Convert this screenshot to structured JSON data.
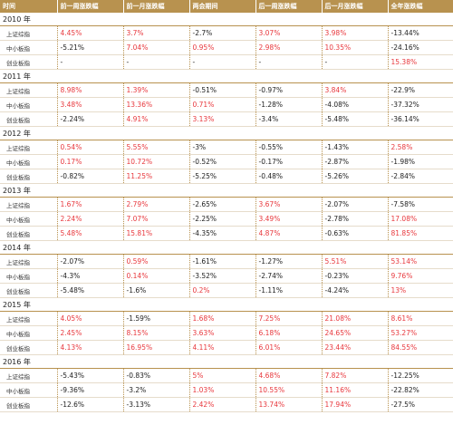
{
  "colors": {
    "header_bg": "#b8924f",
    "positive": "#e8383d",
    "negative": "#222222"
  },
  "header": [
    "时间",
    "前一周涨跌幅",
    "前一月涨跌幅",
    "两会期间",
    "后一周涨跌幅",
    "后一月涨跌幅",
    "全年涨跌幅"
  ],
  "years": [
    {
      "year": "2010 年",
      "rows": [
        {
          "label": "上证综指",
          "cells": [
            "4.45%",
            "3.7%",
            "-2.7%",
            "3.07%",
            "3.98%",
            "-13.44%"
          ]
        },
        {
          "label": "中小板指",
          "cells": [
            "-5.21%",
            "7.04%",
            "0.95%",
            "2.98%",
            "10.35%",
            "-24.16%"
          ]
        },
        {
          "label": "创业板指",
          "cells": [
            "-",
            "-",
            "-",
            "-",
            "-",
            "15.38%"
          ]
        }
      ]
    },
    {
      "year": "2011 年",
      "rows": [
        {
          "label": "上证综指",
          "cells": [
            "8.98%",
            "1.39%",
            "-0.51%",
            "-0.97%",
            "3.84%",
            "-22.9%"
          ]
        },
        {
          "label": "中小板指",
          "cells": [
            "3.48%",
            "13.36%",
            "0.71%",
            "-1.28%",
            "-4.08%",
            "-37.32%"
          ]
        },
        {
          "label": "创业板指",
          "cells": [
            "-2.24%",
            "4.91%",
            "3.13%",
            "-3.4%",
            "-5.48%",
            "-36.14%"
          ]
        }
      ]
    },
    {
      "year": "2012 年",
      "rows": [
        {
          "label": "上证综指",
          "cells": [
            "0.54%",
            "5.55%",
            "-3%",
            "-0.55%",
            "-1.43%",
            "2.58%"
          ]
        },
        {
          "label": "中小板指",
          "cells": [
            "0.17%",
            "10.72%",
            "-0.52%",
            "-0.17%",
            "-2.87%",
            "-1.98%"
          ]
        },
        {
          "label": "创业板指",
          "cells": [
            "-0.82%",
            "11.25%",
            "-5.25%",
            "-0.48%",
            "-5.26%",
            "-2.84%"
          ]
        }
      ]
    },
    {
      "year": "2013 年",
      "rows": [
        {
          "label": "上证综指",
          "cells": [
            "1.67%",
            "2.79%",
            "-2.65%",
            "3.67%",
            "-2.07%",
            "-7.58%"
          ]
        },
        {
          "label": "中小板指",
          "cells": [
            "2.24%",
            "7.07%",
            "-2.25%",
            "3.49%",
            "-2.78%",
            "17.08%"
          ]
        },
        {
          "label": "创业板指",
          "cells": [
            "5.48%",
            "15.81%",
            "-4.35%",
            "4.87%",
            "-0.63%",
            "81.85%"
          ]
        }
      ]
    },
    {
      "year": "2014 年",
      "rows": [
        {
          "label": "上证综指",
          "cells": [
            "-2.07%",
            "0.59%",
            "-1.61%",
            "-1.27%",
            "5.51%",
            "53.14%"
          ]
        },
        {
          "label": "中小板指",
          "cells": [
            "-4.3%",
            "0.14%",
            "-3.52%",
            "-2.74%",
            "-0.23%",
            "9.76%"
          ]
        },
        {
          "label": "创业板指",
          "cells": [
            "-5.48%",
            "-1.6%",
            "0.2%",
            "-1.11%",
            "-4.24%",
            "13%"
          ]
        }
      ]
    },
    {
      "year": "2015 年",
      "rows": [
        {
          "label": "上证综指",
          "cells": [
            "4.05%",
            "-1.59%",
            "1.68%",
            "7.25%",
            "21.08%",
            "8.61%"
          ]
        },
        {
          "label": "中小板指",
          "cells": [
            "2.45%",
            "8.15%",
            "3.63%",
            "6.18%",
            "24.65%",
            "53.27%"
          ]
        },
        {
          "label": "创业板指",
          "cells": [
            "4.13%",
            "16.95%",
            "4.11%",
            "6.01%",
            "23.44%",
            "84.55%"
          ]
        }
      ]
    },
    {
      "year": "2016 年",
      "rows": [
        {
          "label": "上证综指",
          "cells": [
            "-5.43%",
            "-0.83%",
            "5%",
            "4.68%",
            "7.82%",
            "-12.25%"
          ]
        },
        {
          "label": "中小板指",
          "cells": [
            "-9.36%",
            "-3.2%",
            "1.03%",
            "10.55%",
            "11.16%",
            "-22.82%"
          ]
        },
        {
          "label": "创业板指",
          "cells": [
            "-12.6%",
            "-3.13%",
            "2.42%",
            "13.74%",
            "17.94%",
            "-27.5%"
          ]
        }
      ]
    }
  ]
}
